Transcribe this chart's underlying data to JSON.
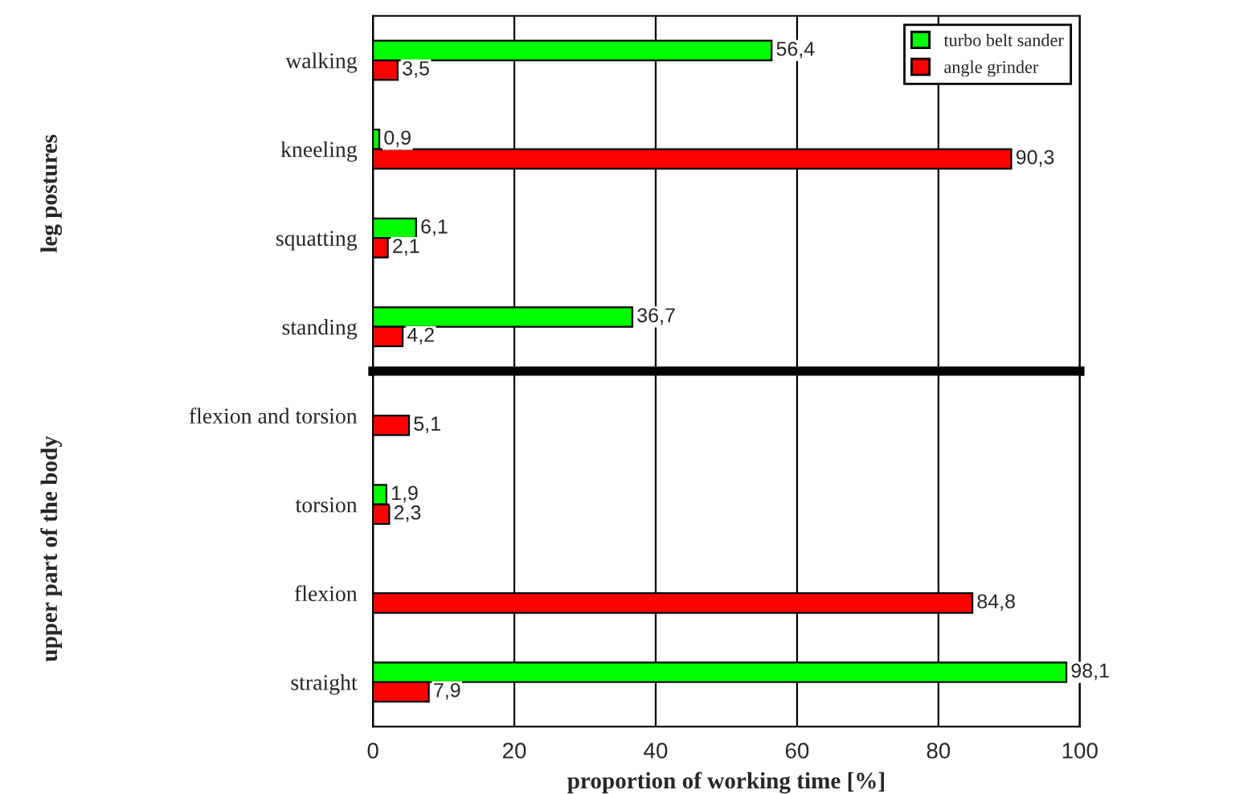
{
  "chart_data": [
    {
      "type": "bar",
      "orientation": "horizontal",
      "ylabel": "leg postures",
      "categories": [
        "walking",
        "kneeling",
        "squatting",
        "standing"
      ],
      "series": [
        {
          "name": "turbo belt sander",
          "color": "#00ff00",
          "values": [
            56.4,
            0.9,
            6.1,
            36.7
          ],
          "value_labels": [
            "56,4",
            "0,9",
            "6,1",
            "36,7"
          ]
        },
        {
          "name": "angle grinder",
          "color": "#ff0000",
          "values": [
            3.5,
            90.3,
            2.1,
            4.2
          ],
          "value_labels": [
            "3,5",
            "90,3",
            "2,1",
            "4,2"
          ]
        }
      ],
      "xlim": [
        0,
        100
      ],
      "xticks": [
        0,
        20,
        40,
        60,
        80,
        100
      ],
      "tick_labels": "y",
      "grid": "x",
      "legend": "top right"
    },
    {
      "type": "bar",
      "orientation": "horizontal",
      "ylabel": "upper part of the body",
      "categories": [
        "flexion and torsion",
        "torsion",
        "flexion",
        "straight"
      ],
      "series": [
        {
          "color": "#00ff00",
          "values": [
            null,
            1.9,
            null,
            98.1
          ],
          "value_labels": [
            null,
            "1,9",
            null,
            "98,1"
          ]
        },
        {
          "color": "#ff0000",
          "values": [
            5.1,
            2.3,
            84.8,
            7.9
          ],
          "value_labels": [
            "5,1",
            "2,3",
            "84,8",
            "7,9"
          ]
        }
      ],
      "xlabel": "proportion of working time [%]",
      "xlim": [
        0,
        100
      ],
      "xticks": [
        0,
        20,
        40,
        60,
        80,
        100
      ],
      "grid": "x"
    }
  ]
}
